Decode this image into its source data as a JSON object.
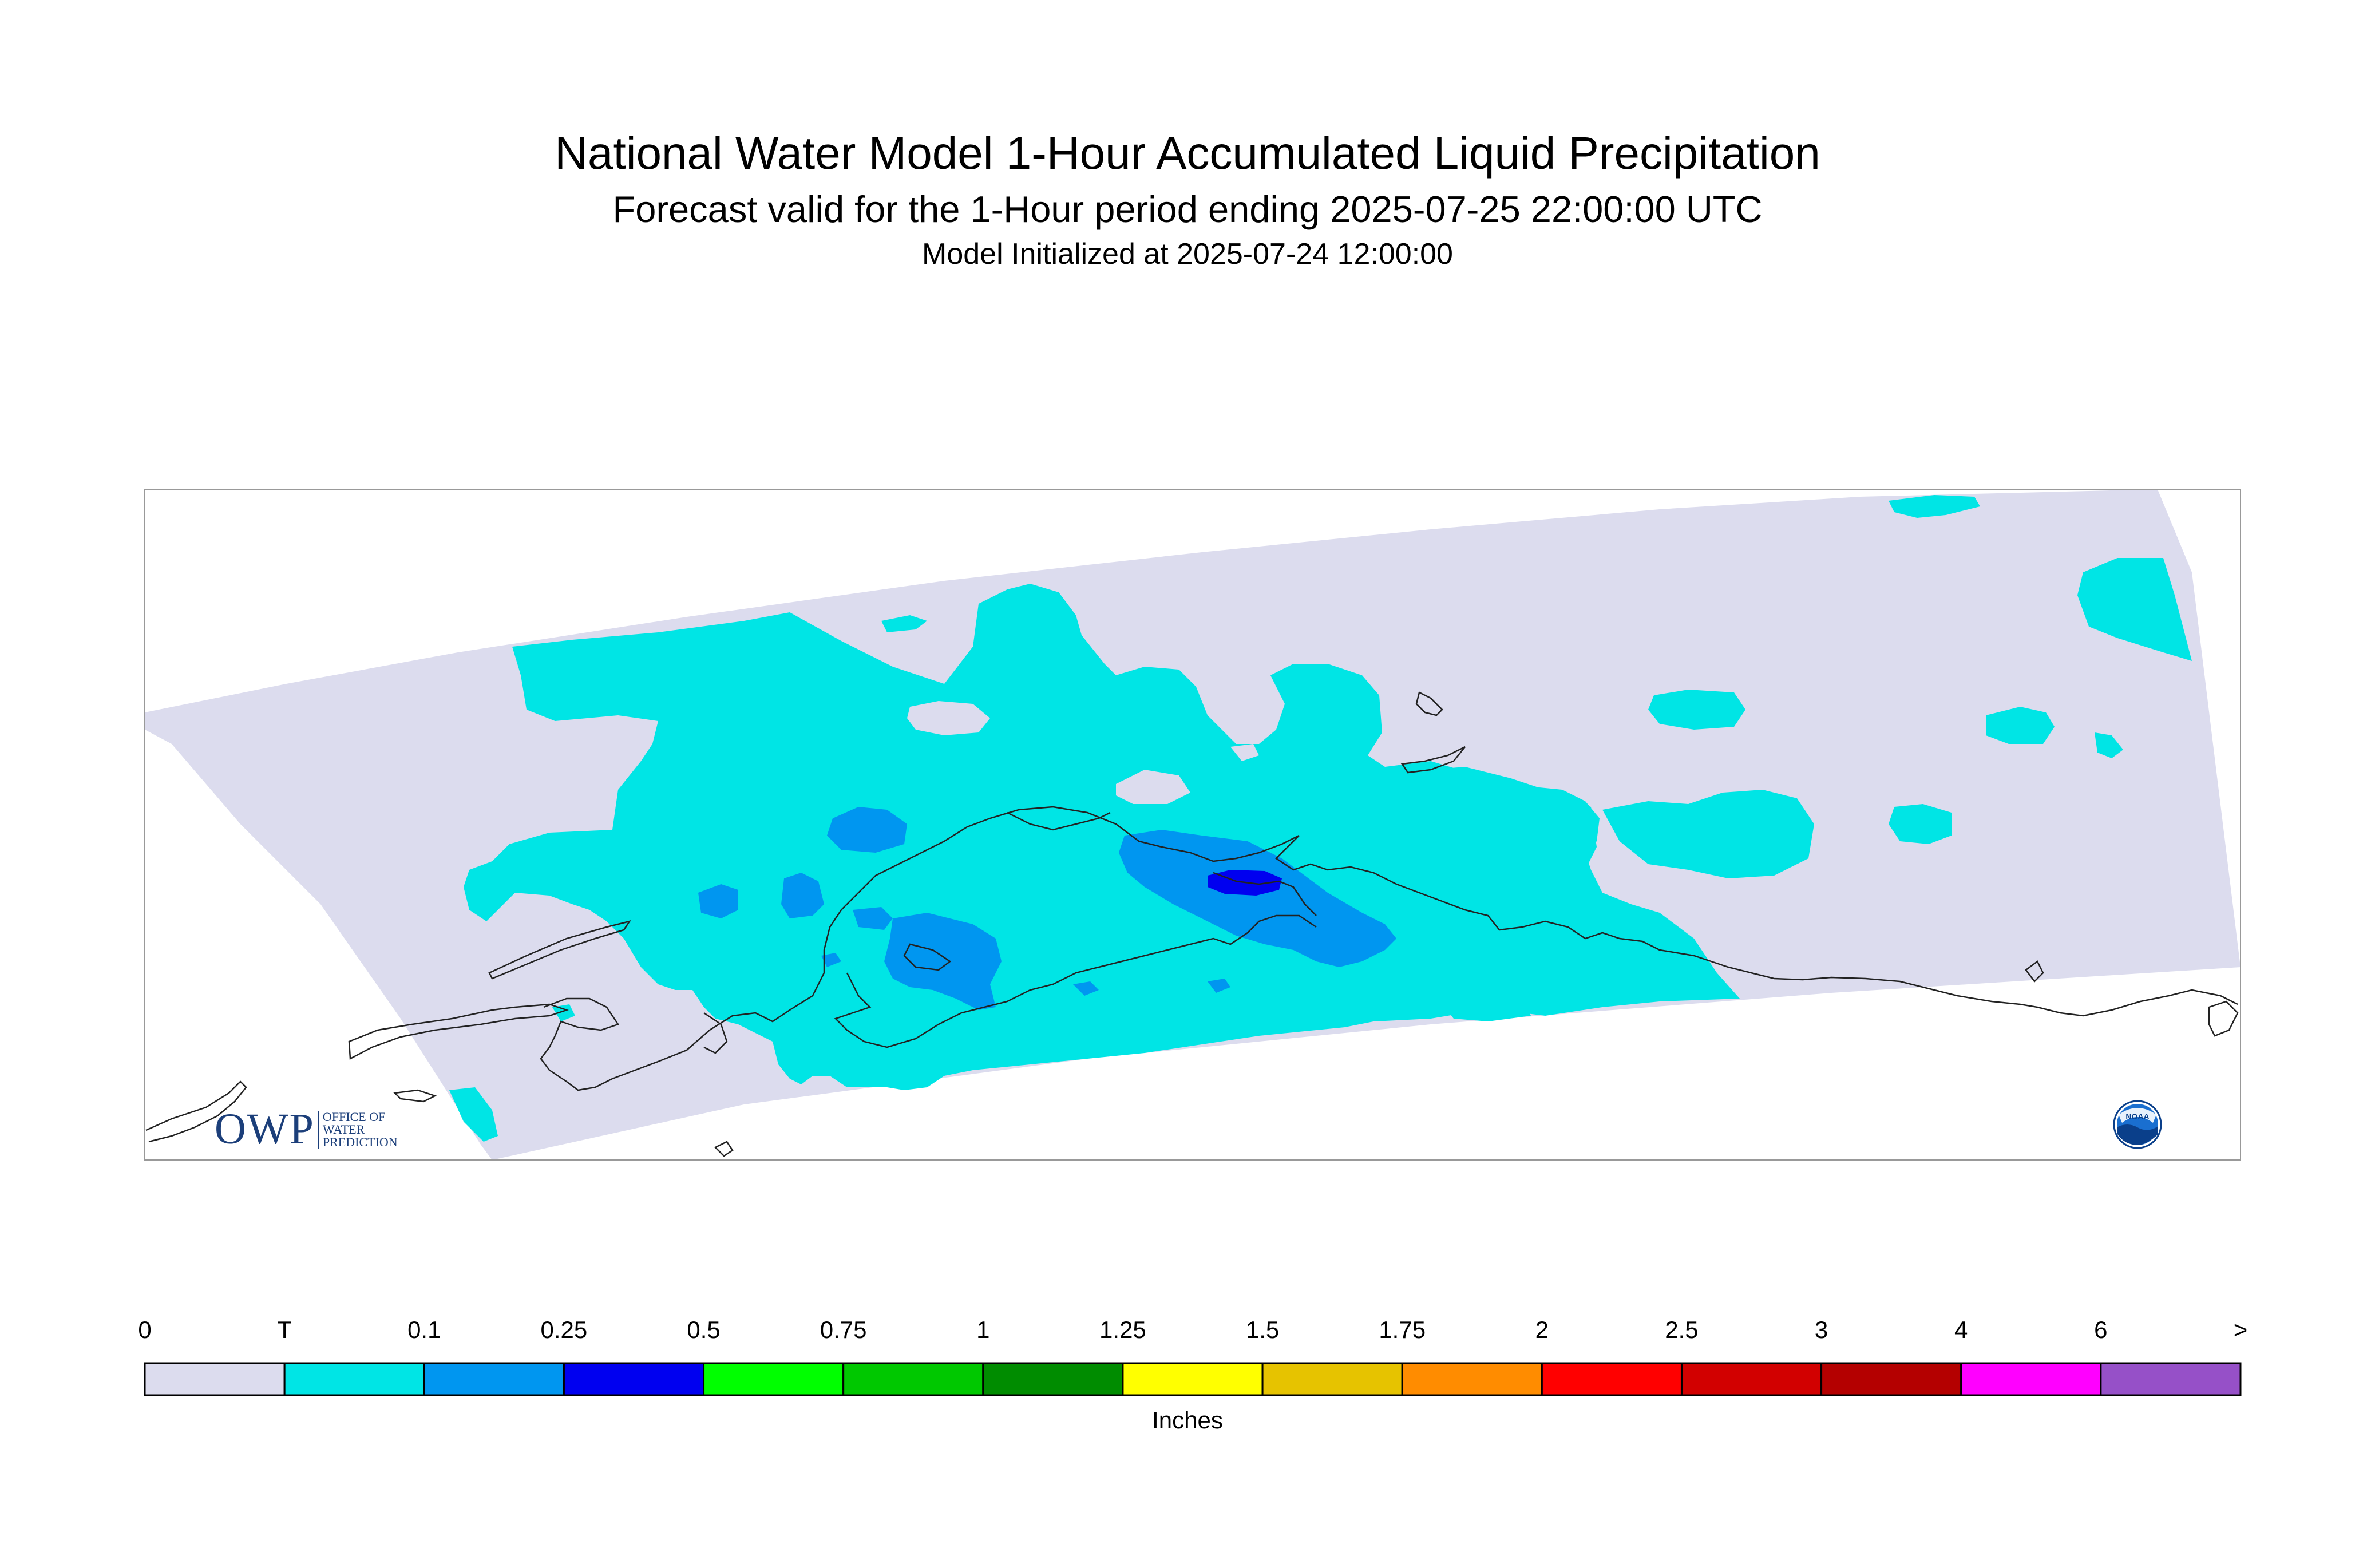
{
  "title": {
    "line1": "National Water Model 1-Hour Accumulated Liquid Precipitation",
    "line2": "Forecast valid for the 1-Hour period ending 2025-07-25 22:00:00 UTC",
    "line3": "Model Initialized at 2025-07-24 12:00:00"
  },
  "map": {
    "domain_color": "#dcdcee",
    "contours": {
      "T": "#00e5e5",
      "0.1": "#0096f0",
      "0.25": "#0000f0"
    },
    "coastline_color": "#222222"
  },
  "colorbar": {
    "labels": [
      "0",
      "T",
      "0.1",
      "0.25",
      "0.5",
      "0.75",
      "1",
      "1.25",
      "1.5",
      "1.75",
      "2",
      "2.5",
      "3",
      "4",
      "6",
      ">"
    ],
    "colors": [
      "#dcdcee",
      "#00e5e5",
      "#0096f0",
      "#0000f0",
      "#00ff00",
      "#00c800",
      "#008c00",
      "#ffff00",
      "#e6c300",
      "#ff8c00",
      "#ff0000",
      "#d20000",
      "#b40000",
      "#ff00ff",
      "#9650c8"
    ],
    "units": "Inches"
  },
  "logos": {
    "owp": {
      "mark": "OWP",
      "text": "OFFICE OF WATER PREDICTION"
    },
    "noaa": {
      "text": "NOAA"
    }
  }
}
